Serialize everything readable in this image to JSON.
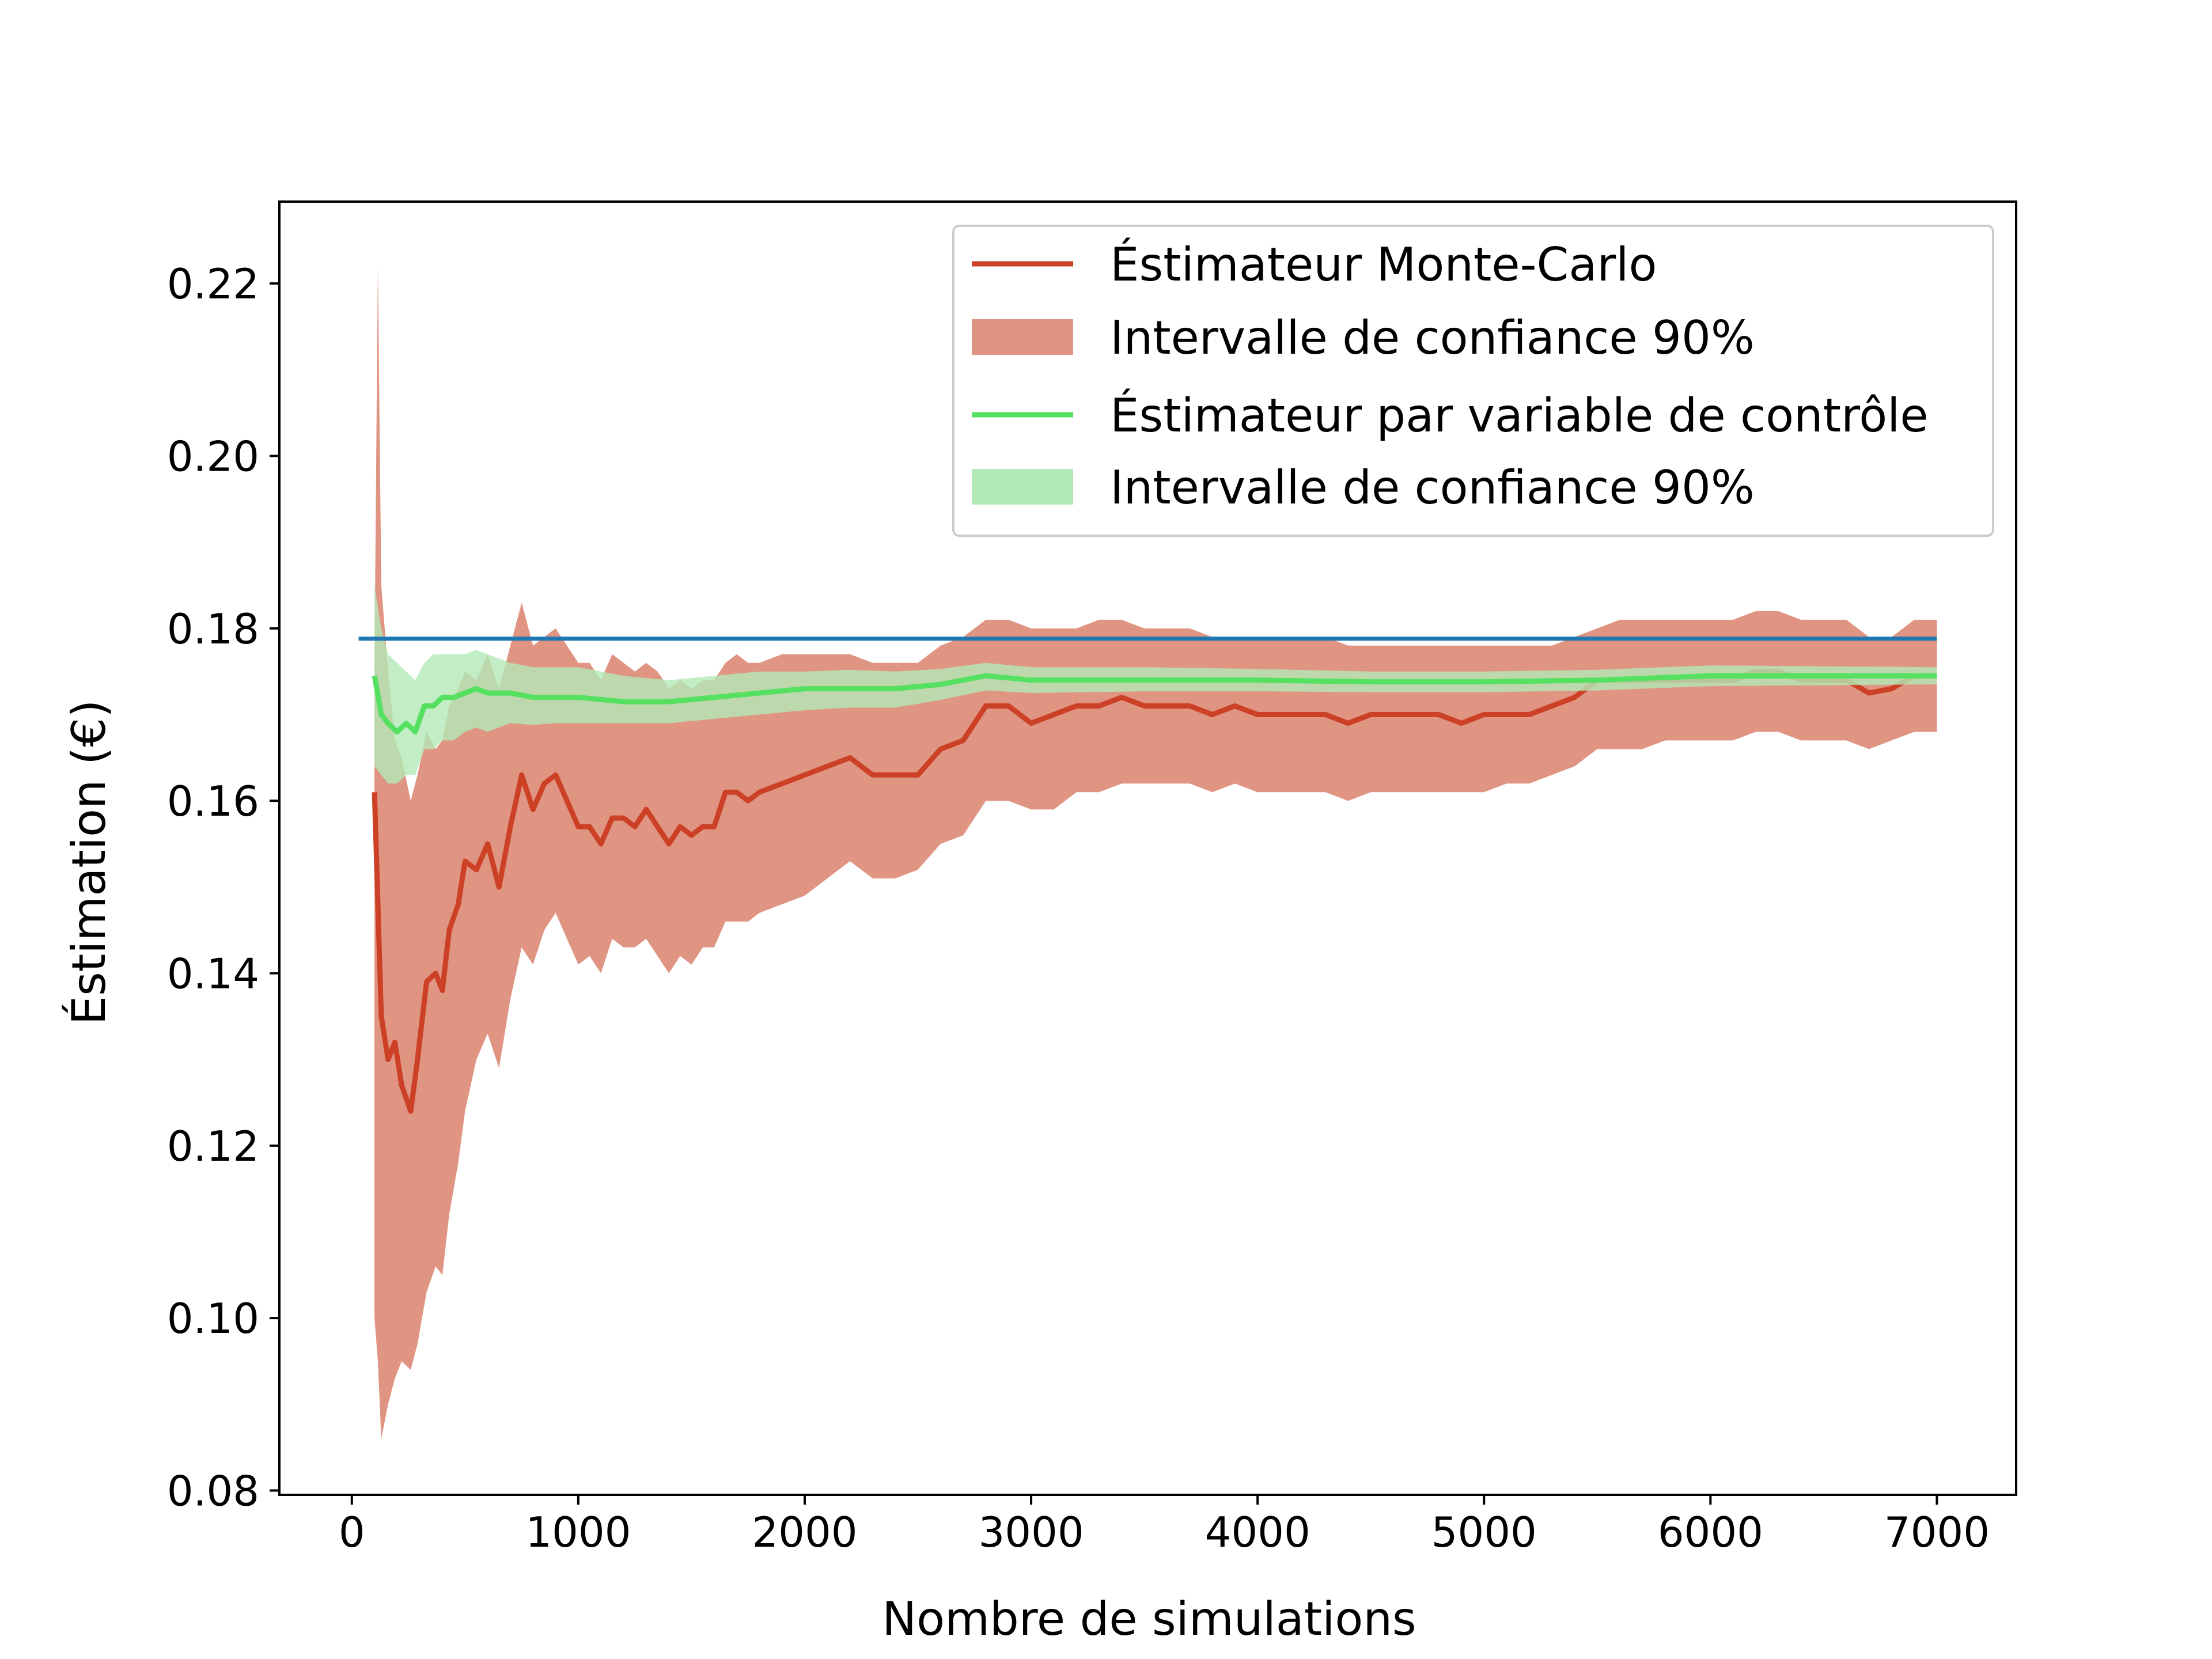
{
  "chart_data": {
    "type": "line",
    "title": "",
    "xlabel": "Nombre de simulations",
    "ylabel": "Éstimation (€)",
    "xlim": [
      -320,
      7350
    ],
    "ylim": [
      0.0795,
      0.2295
    ],
    "x_ticks": [
      0,
      1000,
      2000,
      3000,
      4000,
      5000,
      6000,
      7000
    ],
    "x_tick_labels": [
      "0",
      "1000",
      "2000",
      "3000",
      "4000",
      "5000",
      "6000",
      "7000"
    ],
    "y_ticks": [
      0.08,
      0.1,
      0.12,
      0.14,
      0.16,
      0.18,
      0.2,
      0.22
    ],
    "y_tick_labels": [
      "0.08",
      "0.10",
      "0.12",
      "0.14",
      "0.16",
      "0.18",
      "0.20",
      "0.22"
    ],
    "grid": false,
    "legend_position": "top-right",
    "colors": {
      "mc_line": "#cc4125",
      "mc_band": "#e09482",
      "cv_line": "#55e060",
      "cv_band": "#b3e8b7",
      "reference": "#1f77b4"
    },
    "legend": [
      {
        "label": "Éstimateur Monte-Carlo",
        "kind": "line",
        "color": "#cc4125"
      },
      {
        "label": "Intervalle de confiance 90%",
        "kind": "patch",
        "color": "#e09482"
      },
      {
        "label": "Éstimateur par variable de contrôle",
        "kind": "line",
        "color": "#55e060"
      },
      {
        "label": "Intervalle de confiance 90%",
        "kind": "patch",
        "color": "#b3e8b7"
      }
    ],
    "reference_line": {
      "x": [
        30,
        7000
      ],
      "y": 0.1788
    },
    "series": [
      {
        "name": "Éstimateur Monte-Carlo",
        "kind": "line",
        "x": [
          100,
          115,
          130,
          160,
          190,
          220,
          260,
          290,
          330,
          370,
          400,
          430,
          470,
          500,
          550,
          600,
          650,
          700,
          750,
          800,
          850,
          900,
          950,
          1000,
          1050,
          1100,
          1150,
          1200,
          1250,
          1300,
          1350,
          1400,
          1450,
          1500,
          1550,
          1600,
          1650,
          1700,
          1750,
          1800,
          1900,
          2000,
          2100,
          2200,
          2300,
          2400,
          2500,
          2600,
          2700,
          2800,
          2900,
          3000,
          3100,
          3200,
          3300,
          3400,
          3500,
          3600,
          3700,
          3800,
          3900,
          4000,
          4100,
          4200,
          4300,
          4400,
          4500,
          4600,
          4700,
          4800,
          4900,
          5000,
          5100,
          5200,
          5300,
          5400,
          5500,
          5600,
          5700,
          5800,
          5900,
          6000,
          6100,
          6200,
          6300,
          6400,
          6500,
          6600,
          6700,
          6800,
          6900,
          7000
        ],
        "values": [
          0.161,
          0.148,
          0.135,
          0.13,
          0.132,
          0.127,
          0.124,
          0.13,
          0.139,
          0.14,
          0.138,
          0.145,
          0.148,
          0.153,
          0.152,
          0.155,
          0.15,
          0.157,
          0.163,
          0.159,
          0.162,
          0.163,
          0.16,
          0.157,
          0.157,
          0.155,
          0.158,
          0.158,
          0.157,
          0.159,
          0.157,
          0.155,
          0.157,
          0.156,
          0.157,
          0.157,
          0.161,
          0.161,
          0.16,
          0.161,
          0.162,
          0.163,
          0.164,
          0.165,
          0.163,
          0.163,
          0.163,
          0.166,
          0.167,
          0.171,
          0.171,
          0.169,
          0.17,
          0.171,
          0.171,
          0.172,
          0.171,
          0.171,
          0.171,
          0.17,
          0.171,
          0.17,
          0.17,
          0.17,
          0.17,
          0.169,
          0.17,
          0.17,
          0.17,
          0.17,
          0.169,
          0.17,
          0.17,
          0.17,
          0.171,
          0.172,
          0.174,
          0.174,
          0.174,
          0.174,
          0.174,
          0.174,
          0.174,
          0.175,
          0.175,
          0.174,
          0.174,
          0.174,
          0.1725,
          0.173,
          0.1745,
          0.1745
        ]
      },
      {
        "name": "Intervalle de confiance 90%",
        "kind": "band",
        "x": [
          100,
          115,
          130,
          160,
          190,
          220,
          260,
          290,
          330,
          370,
          400,
          430,
          470,
          500,
          550,
          600,
          650,
          700,
          750,
          800,
          850,
          900,
          950,
          1000,
          1050,
          1100,
          1150,
          1200,
          1250,
          1300,
          1350,
          1400,
          1450,
          1500,
          1550,
          1600,
          1650,
          1700,
          1750,
          1800,
          1900,
          2000,
          2100,
          2200,
          2300,
          2400,
          2500,
          2600,
          2700,
          2800,
          2900,
          3000,
          3100,
          3200,
          3300,
          3400,
          3500,
          3600,
          3700,
          3800,
          3900,
          4000,
          4100,
          4200,
          4300,
          4400,
          4500,
          4600,
          4700,
          4800,
          4900,
          5000,
          5100,
          5200,
          5300,
          5400,
          5500,
          5600,
          5700,
          5800,
          5900,
          6000,
          6100,
          6200,
          6300,
          6400,
          6500,
          6600,
          6700,
          6800,
          6900,
          7000
        ],
        "upper": [
          0.176,
          0.222,
          0.185,
          0.175,
          0.167,
          0.165,
          0.16,
          0.163,
          0.168,
          0.166,
          0.167,
          0.171,
          0.173,
          0.175,
          0.174,
          0.177,
          0.173,
          0.178,
          0.183,
          0.178,
          0.179,
          0.18,
          0.178,
          0.176,
          0.176,
          0.174,
          0.177,
          0.176,
          0.175,
          0.176,
          0.175,
          0.173,
          0.174,
          0.173,
          0.174,
          0.174,
          0.176,
          0.177,
          0.176,
          0.176,
          0.177,
          0.177,
          0.177,
          0.177,
          0.176,
          0.176,
          0.176,
          0.178,
          0.179,
          0.181,
          0.181,
          0.18,
          0.18,
          0.18,
          0.181,
          0.181,
          0.18,
          0.18,
          0.18,
          0.179,
          0.179,
          0.179,
          0.179,
          0.179,
          0.179,
          0.178,
          0.178,
          0.178,
          0.178,
          0.178,
          0.178,
          0.178,
          0.178,
          0.178,
          0.178,
          0.179,
          0.18,
          0.181,
          0.181,
          0.181,
          0.181,
          0.181,
          0.181,
          0.182,
          0.182,
          0.181,
          0.181,
          0.181,
          0.179,
          0.179,
          0.181,
          0.181
        ],
        "lower": [
          0.1,
          0.095,
          0.086,
          0.09,
          0.093,
          0.095,
          0.094,
          0.097,
          0.103,
          0.106,
          0.105,
          0.112,
          0.118,
          0.124,
          0.13,
          0.133,
          0.129,
          0.137,
          0.143,
          0.141,
          0.145,
          0.147,
          0.144,
          0.141,
          0.142,
          0.14,
          0.144,
          0.143,
          0.143,
          0.144,
          0.142,
          0.14,
          0.142,
          0.141,
          0.143,
          0.143,
          0.146,
          0.146,
          0.146,
          0.147,
          0.148,
          0.149,
          0.151,
          0.153,
          0.151,
          0.151,
          0.152,
          0.155,
          0.156,
          0.16,
          0.16,
          0.159,
          0.159,
          0.161,
          0.161,
          0.162,
          0.162,
          0.162,
          0.162,
          0.161,
          0.162,
          0.161,
          0.161,
          0.161,
          0.161,
          0.16,
          0.161,
          0.161,
          0.161,
          0.161,
          0.161,
          0.161,
          0.162,
          0.162,
          0.163,
          0.164,
          0.166,
          0.166,
          0.166,
          0.167,
          0.167,
          0.167,
          0.167,
          0.168,
          0.168,
          0.167,
          0.167,
          0.167,
          0.166,
          0.167,
          0.168,
          0.168
        ]
      },
      {
        "name": "Éstimateur par variable de contrôle",
        "kind": "line",
        "x": [
          100,
          130,
          160,
          200,
          240,
          280,
          320,
          360,
          400,
          450,
          500,
          550,
          600,
          700,
          800,
          900,
          1000,
          1200,
          1400,
          1600,
          1800,
          2000,
          2200,
          2400,
          2600,
          2800,
          3000,
          3500,
          4000,
          4500,
          5000,
          5500,
          6000,
          6500,
          7000
        ],
        "values": [
          0.1745,
          0.17,
          0.169,
          0.168,
          0.169,
          0.168,
          0.171,
          0.171,
          0.172,
          0.172,
          0.1725,
          0.173,
          0.1725,
          0.1725,
          0.172,
          0.172,
          0.172,
          0.1715,
          0.1715,
          0.172,
          0.1725,
          0.173,
          0.173,
          0.173,
          0.1735,
          0.1745,
          0.174,
          0.174,
          0.174,
          0.1738,
          0.1738,
          0.174,
          0.1745,
          0.1745,
          0.1745
        ]
      },
      {
        "name": "Intervalle de confiance 90%",
        "kind": "band",
        "x": [
          100,
          130,
          160,
          200,
          240,
          280,
          320,
          360,
          400,
          450,
          500,
          550,
          600,
          700,
          800,
          900,
          1000,
          1200,
          1400,
          1600,
          1800,
          2000,
          2200,
          2400,
          2600,
          2800,
          3000,
          3500,
          4000,
          4500,
          5000,
          5500,
          6000,
          6500,
          7000
        ],
        "upper": [
          0.185,
          0.18,
          0.177,
          0.176,
          0.175,
          0.174,
          0.176,
          0.177,
          0.177,
          0.177,
          0.177,
          0.1775,
          0.177,
          0.176,
          0.1755,
          0.1755,
          0.1755,
          0.1745,
          0.174,
          0.1745,
          0.175,
          0.175,
          0.1752,
          0.175,
          0.1753,
          0.176,
          0.1755,
          0.1755,
          0.1753,
          0.175,
          0.175,
          0.1752,
          0.1757,
          0.1756,
          0.1755
        ],
        "lower": [
          0.164,
          0.163,
          0.162,
          0.162,
          0.163,
          0.163,
          0.166,
          0.166,
          0.167,
          0.167,
          0.168,
          0.1685,
          0.168,
          0.169,
          0.1688,
          0.169,
          0.169,
          0.169,
          0.169,
          0.1695,
          0.17,
          0.1705,
          0.1708,
          0.1708,
          0.1717,
          0.1728,
          0.1725,
          0.1727,
          0.1727,
          0.1726,
          0.1726,
          0.1728,
          0.1733,
          0.1734,
          0.1735
        ]
      }
    ]
  }
}
